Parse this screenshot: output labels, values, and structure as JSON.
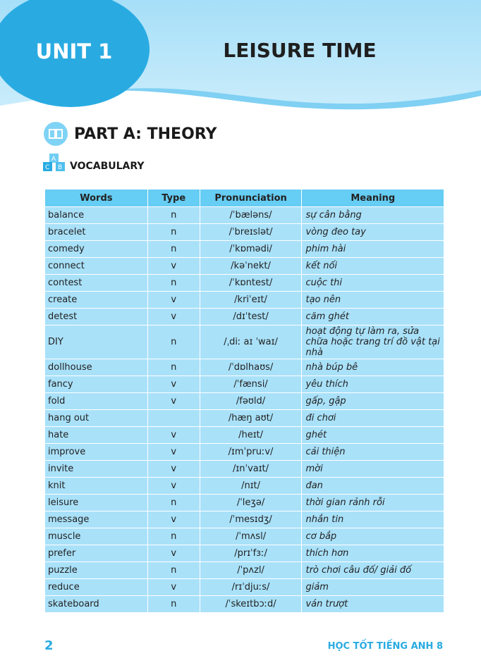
{
  "header": {
    "unit": "UNIT 1",
    "title": "LEISURE TIME"
  },
  "section": {
    "part": "PART A: THEORY",
    "sub": "VOCABULARY",
    "block_letters": [
      "A",
      "C",
      "B"
    ]
  },
  "table": {
    "headers": [
      "Words",
      "Type",
      "Pronunciation",
      "Meaning"
    ],
    "rows": [
      [
        "balance",
        "n",
        "/ˈbæləns/",
        "sự cân bằng"
      ],
      [
        "bracelet",
        "n",
        "/ˈbreɪslət/",
        "vòng đeo tay"
      ],
      [
        "comedy",
        "n",
        "/ˈkɒmədi/",
        "phim hài"
      ],
      [
        "connect",
        "v",
        "/kəˈnekt/",
        "kết nối"
      ],
      [
        "contest",
        "n",
        "/ˈkɒntest/",
        "cuộc thi"
      ],
      [
        "create",
        "v",
        "/kriˈeɪt/",
        "tạo nên"
      ],
      [
        "detest",
        "v",
        "/dɪˈtest/",
        "căm ghét"
      ],
      [
        "DIY",
        "n",
        "/ˌdiː aɪ ˈwaɪ/",
        "hoạt động tự làm ra, sửa chữa hoặc trang trí đồ vật tại nhà"
      ],
      [
        "dollhouse",
        "n",
        "/ˈdɒlhaʊs/",
        "nhà búp bê"
      ],
      [
        "fancy",
        "v",
        "/ˈfænsi/",
        "yêu thích"
      ],
      [
        "fold",
        "v",
        "/fəʊld/",
        "gấp, gập"
      ],
      [
        "hang out",
        "",
        "/hæŋ aʊt/",
        "đi chơi"
      ],
      [
        "hate",
        "v",
        "/heɪt/",
        "ghét"
      ],
      [
        "improve",
        "v",
        "/ɪmˈpruːv/",
        "cải thiện"
      ],
      [
        "invite",
        "v",
        "/ɪnˈvaɪt/",
        "mời"
      ],
      [
        "knit",
        "v",
        "/nɪt/",
        "đan"
      ],
      [
        "leisure",
        "n",
        "/ˈleʒə/",
        "thời gian rảnh rỗi"
      ],
      [
        "message",
        "v",
        "/ˈmesɪdʒ/",
        "nhắn tin"
      ],
      [
        "muscle",
        "n",
        "/ˈmʌsl/",
        "cơ bắp"
      ],
      [
        "prefer",
        "v",
        "/prɪˈfɜː/",
        "thích hơn"
      ],
      [
        "puzzle",
        "n",
        "/ˈpʌzl/",
        "trò chơi câu đố/ giải đố"
      ],
      [
        "reduce",
        "v",
        "/rɪˈdjuːs/",
        "giảm"
      ],
      [
        "skateboard",
        "n",
        "/ˈskeɪtbɔːd/",
        "ván trượt"
      ]
    ]
  },
  "footer": {
    "page": "2",
    "book": "HỌC TỐT TIẾNG ANH 8"
  },
  "colors": {
    "accent": "#29abe2",
    "header_cell": "#66cdf4",
    "row_cell": "#a9e1f9",
    "banner": "#b5e4f8"
  }
}
